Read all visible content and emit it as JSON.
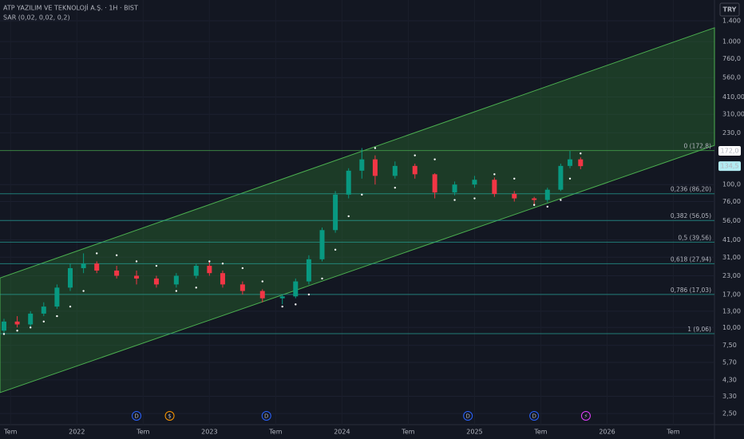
{
  "chart_data": {
    "type": "candlestick",
    "title": "ATP YAZILIM VE TEKNOLOJİ A.Ş. · 1H · BIST",
    "indicator": "SAR (0,02, 0,02, 0,2)",
    "currency": "TRY",
    "log_scale": true,
    "grid": true,
    "up_color": "#089981",
    "down_color": "#f23645",
    "sar_color": "#ffffff",
    "channel_color": "#2e7d32",
    "xlim": [
      2021.42,
      2026.81
    ],
    "ylim": [
      2.09,
      1955
    ],
    "xticks": [
      {
        "value": 2021.5,
        "label": "Tem"
      },
      2022,
      {
        "value": 2022.5,
        "label": "Tem"
      },
      2023,
      {
        "value": 2023.5,
        "label": "Tem"
      },
      2024,
      {
        "value": 2024.5,
        "label": "Tem"
      },
      2025,
      {
        "value": 2025.5,
        "label": "Tem"
      },
      2026,
      {
        "value": 2026.5,
        "label": "Tem"
      }
    ],
    "yticks": [
      {
        "value": 1400,
        "label": "1.400"
      },
      {
        "value": 1000,
        "label": "1.000"
      },
      {
        "value": 760,
        "label": "760,0"
      },
      {
        "value": 560,
        "label": "560,0"
      },
      {
        "value": 410,
        "label": "410,00"
      },
      {
        "value": 310,
        "label": "310,00"
      },
      {
        "value": 230,
        "label": "230,0"
      },
      {
        "value": 100,
        "label": "100,0"
      },
      {
        "value": 76,
        "label": "76,00"
      },
      {
        "value": 56,
        "label": "56,00"
      },
      {
        "value": 41,
        "label": "41,00"
      },
      {
        "value": 31,
        "label": "31,00"
      },
      {
        "value": 23,
        "label": "23,00"
      },
      {
        "value": 17,
        "label": "17,00"
      },
      {
        "value": 13,
        "label": "13,00"
      },
      {
        "value": 10,
        "label": "10,00"
      },
      {
        "value": 7.5,
        "label": "7,50"
      },
      {
        "value": 5.7,
        "label": "5,70"
      },
      {
        "value": 4.3,
        "label": "4,30"
      },
      {
        "value": 3.3,
        "label": "3,30"
      },
      {
        "value": 2.5,
        "label": "2,50"
      }
    ],
    "x": [
      2021.45,
      2021.55,
      2021.65,
      2021.75,
      2021.85,
      2021.95,
      2022.05,
      2022.15,
      2022.3,
      2022.45,
      2022.6,
      2022.75,
      2022.9,
      2023.0,
      2023.1,
      2023.25,
      2023.4,
      2023.55,
      2023.65,
      2023.75,
      2023.85,
      2023.95,
      2024.05,
      2024.15,
      2024.25,
      2024.4,
      2024.55,
      2024.7,
      2024.85,
      2025.0,
      2025.15,
      2025.3,
      2025.45,
      2025.55,
      2025.65,
      2025.72,
      2025.8
    ],
    "open": [
      9.5,
      11,
      10.5,
      12.5,
      14,
      19,
      26,
      28,
      25,
      23,
      22,
      20,
      23,
      27,
      24,
      20,
      18,
      16,
      16.5,
      21,
      30,
      48,
      85,
      125,
      150,
      115,
      135,
      118,
      88,
      100,
      108,
      86,
      80,
      78,
      92,
      135,
      150
    ],
    "high": [
      11.5,
      12,
      13,
      15,
      20,
      28,
      33,
      29,
      27,
      25,
      23,
      24,
      28,
      29,
      25,
      21,
      18.5,
      17,
      22,
      32,
      50,
      90,
      130,
      180,
      160,
      145,
      140,
      120,
      105,
      115,
      112,
      90,
      82,
      95,
      140,
      172,
      155
    ],
    "low": [
      9,
      10,
      10,
      12,
      13.5,
      18,
      24,
      24,
      22,
      20,
      19,
      19,
      22,
      23,
      19,
      17,
      15,
      14.5,
      16,
      20,
      29,
      46,
      80,
      110,
      100,
      110,
      110,
      80,
      84,
      95,
      82,
      76,
      72,
      75,
      90,
      130,
      128
    ],
    "close": [
      11,
      10.5,
      12.5,
      14,
      19,
      26,
      28,
      25,
      23,
      22,
      20,
      23,
      27,
      24,
      20,
      18,
      16,
      16.5,
      21,
      30,
      48,
      85,
      125,
      150,
      115,
      135,
      118,
      88,
      100,
      108,
      86,
      80,
      78,
      92,
      135,
      150,
      134.5
    ],
    "sar": [
      9,
      9.5,
      10,
      11,
      12,
      14,
      18,
      33,
      32,
      29,
      27,
      18,
      19,
      29,
      28,
      26,
      21,
      14,
      14.5,
      17,
      22,
      35,
      60,
      85,
      180,
      95,
      160,
      150,
      78,
      80,
      118,
      110,
      72,
      70,
      78,
      110,
      165
    ],
    "channel": {
      "upper": [
        22.2,
        1250
      ],
      "lower": [
        3.5,
        188
      ]
    },
    "levels": [
      {
        "value": 172.8,
        "label": "0 (172,8)"
      },
      {
        "value": 86.2,
        "label": "0,236 (86,20)"
      },
      {
        "value": 56.05,
        "label": "0,382 (56,05)"
      },
      {
        "value": 39.56,
        "label": "0,5 (39,56)"
      },
      {
        "value": 27.94,
        "label": "0,618 (27,94)"
      },
      {
        "value": 17.03,
        "label": "0,786 (17,03)"
      },
      {
        "value": 9.06,
        "label": "1 (9,06)"
      }
    ],
    "price_tags": [
      {
        "value": 172,
        "label": "172,0"
      },
      {
        "value": 134.5,
        "label": "134,5"
      }
    ],
    "events": [
      {
        "x": 2022.45,
        "label": "D"
      },
      {
        "x": 2022.7,
        "label": "$"
      },
      {
        "x": 2023.43,
        "label": "D"
      },
      {
        "x": 2024.95,
        "label": "D"
      },
      {
        "x": 2025.45,
        "label": "D"
      },
      {
        "x": 2025.84,
        "label": "⚡"
      }
    ]
  }
}
